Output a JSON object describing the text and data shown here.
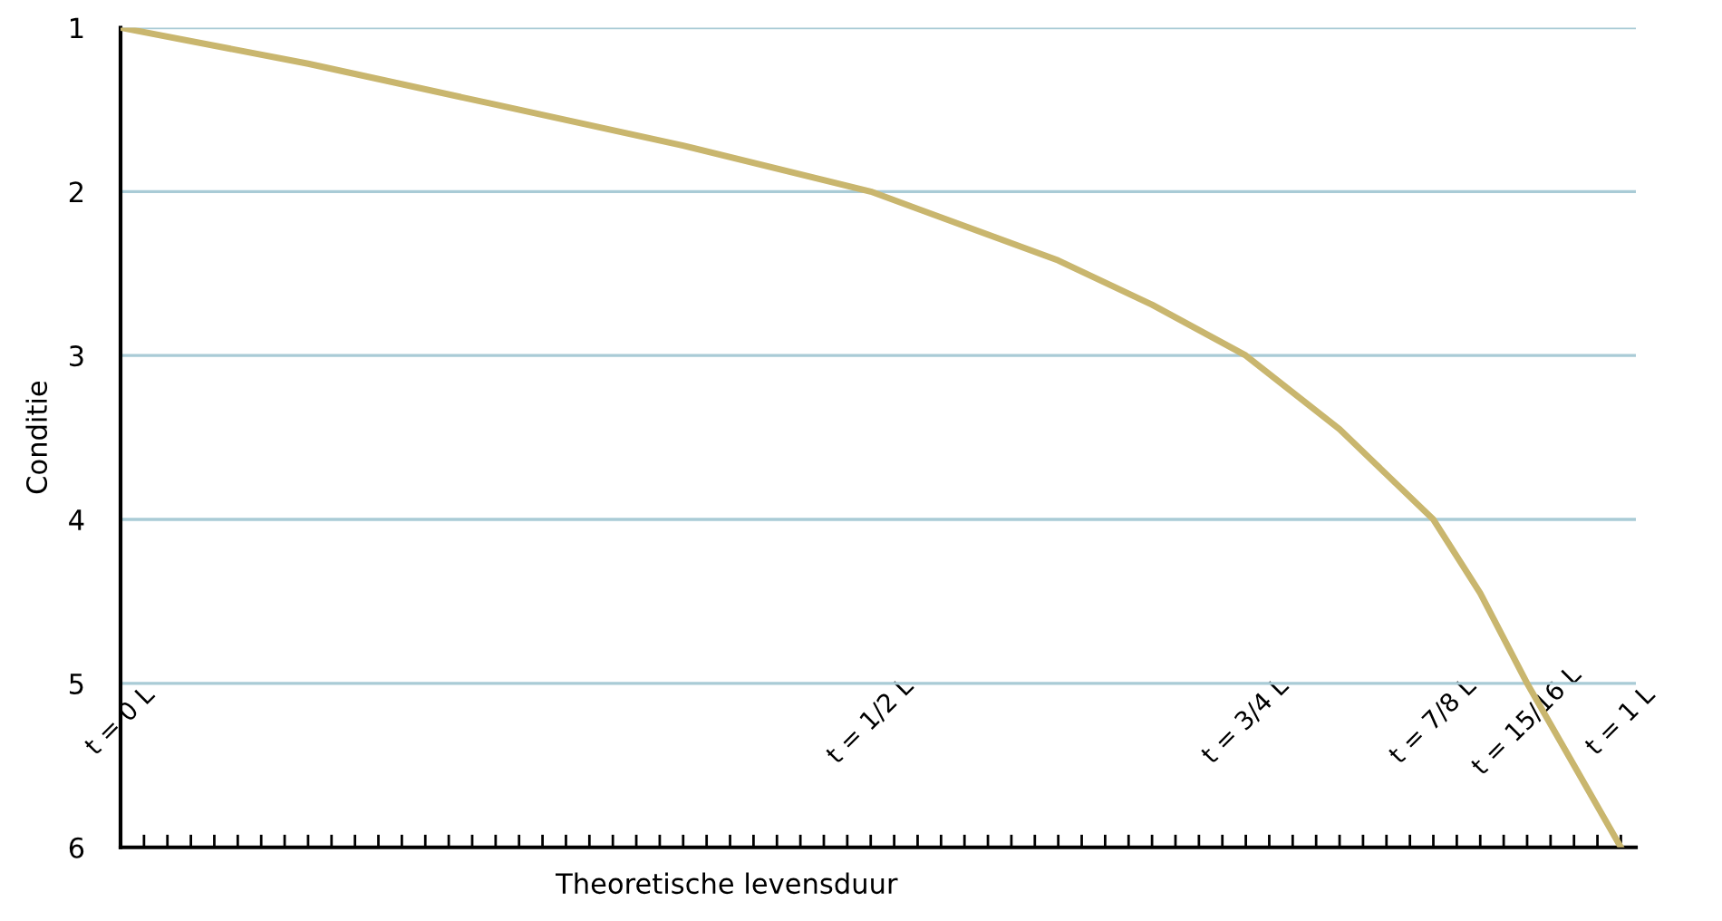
{
  "chart_data": {
    "type": "line",
    "ylabel": "Conditie",
    "xlabel": "Theoretische levensduur",
    "x": [
      0,
      0.125,
      0.25,
      0.375,
      0.5,
      0.625,
      0.6875,
      0.75,
      0.8125,
      0.875,
      0.90625,
      0.9375,
      0.96875,
      1
    ],
    "series": [
      {
        "color": "#c9b66e",
        "values": [
          1,
          1.22,
          1.47,
          1.72,
          2,
          2.42,
          2.69,
          3,
          3.45,
          4,
          4.45,
          5,
          5.5,
          6
        ]
      }
    ],
    "xlim": [
      0,
      1.01
    ],
    "ylim": [
      6,
      1
    ],
    "yticks": [
      1,
      2,
      3,
      4,
      5,
      6
    ],
    "xticks": [
      {
        "value": 0,
        "label": "t = 0 L"
      },
      {
        "value": 0.015625,
        "label": null
      },
      {
        "value": 0.03125,
        "label": null
      },
      {
        "value": 0.046875,
        "label": null
      },
      {
        "value": 0.0625,
        "label": null
      },
      {
        "value": 0.078125,
        "label": null
      },
      {
        "value": 0.09375,
        "label": null
      },
      {
        "value": 0.109375,
        "label": null
      },
      {
        "value": 0.125,
        "label": null
      },
      {
        "value": 0.140625,
        "label": null
      },
      {
        "value": 0.15625,
        "label": null
      },
      {
        "value": 0.171875,
        "label": null
      },
      {
        "value": 0.1875,
        "label": null
      },
      {
        "value": 0.203125,
        "label": null
      },
      {
        "value": 0.21875,
        "label": null
      },
      {
        "value": 0.234375,
        "label": null
      },
      {
        "value": 0.25,
        "label": null
      },
      {
        "value": 0.265625,
        "label": null
      },
      {
        "value": 0.28125,
        "label": null
      },
      {
        "value": 0.296875,
        "label": null
      },
      {
        "value": 0.3125,
        "label": null
      },
      {
        "value": 0.328125,
        "label": null
      },
      {
        "value": 0.34375,
        "label": null
      },
      {
        "value": 0.359375,
        "label": null
      },
      {
        "value": 0.375,
        "label": null
      },
      {
        "value": 0.390625,
        "label": null
      },
      {
        "value": 0.40625,
        "label": null
      },
      {
        "value": 0.421875,
        "label": null
      },
      {
        "value": 0.4375,
        "label": null
      },
      {
        "value": 0.453125,
        "label": null
      },
      {
        "value": 0.46875,
        "label": null
      },
      {
        "value": 0.484375,
        "label": null
      },
      {
        "value": 0.5,
        "label": "t = 1/2 L"
      },
      {
        "value": 0.515625,
        "label": null
      },
      {
        "value": 0.53125,
        "label": null
      },
      {
        "value": 0.546875,
        "label": null
      },
      {
        "value": 0.5625,
        "label": null
      },
      {
        "value": 0.578125,
        "label": null
      },
      {
        "value": 0.59375,
        "label": null
      },
      {
        "value": 0.609375,
        "label": null
      },
      {
        "value": 0.625,
        "label": null
      },
      {
        "value": 0.640625,
        "label": null
      },
      {
        "value": 0.65625,
        "label": null
      },
      {
        "value": 0.671875,
        "label": null
      },
      {
        "value": 0.6875,
        "label": null
      },
      {
        "value": 0.703125,
        "label": null
      },
      {
        "value": 0.71875,
        "label": null
      },
      {
        "value": 0.734375,
        "label": null
      },
      {
        "value": 0.75,
        "label": "t = 3/4 L"
      },
      {
        "value": 0.765625,
        "label": null
      },
      {
        "value": 0.78125,
        "label": null
      },
      {
        "value": 0.796875,
        "label": null
      },
      {
        "value": 0.8125,
        "label": null
      },
      {
        "value": 0.828125,
        "label": null
      },
      {
        "value": 0.84375,
        "label": null
      },
      {
        "value": 0.859375,
        "label": null
      },
      {
        "value": 0.875,
        "label": "t = 7/8 L"
      },
      {
        "value": 0.890625,
        "label": null
      },
      {
        "value": 0.90625,
        "label": null
      },
      {
        "value": 0.921875,
        "label": null
      },
      {
        "value": 0.9375,
        "label": "t = 15/16 L"
      },
      {
        "value": 0.953125,
        "label": null
      },
      {
        "value": 0.96875,
        "label": null
      },
      {
        "value": 0.984375,
        "label": null
      },
      {
        "value": 1,
        "label": "t = 1 L"
      }
    ],
    "grid": "y",
    "marker": "none",
    "line_style": "solid"
  }
}
